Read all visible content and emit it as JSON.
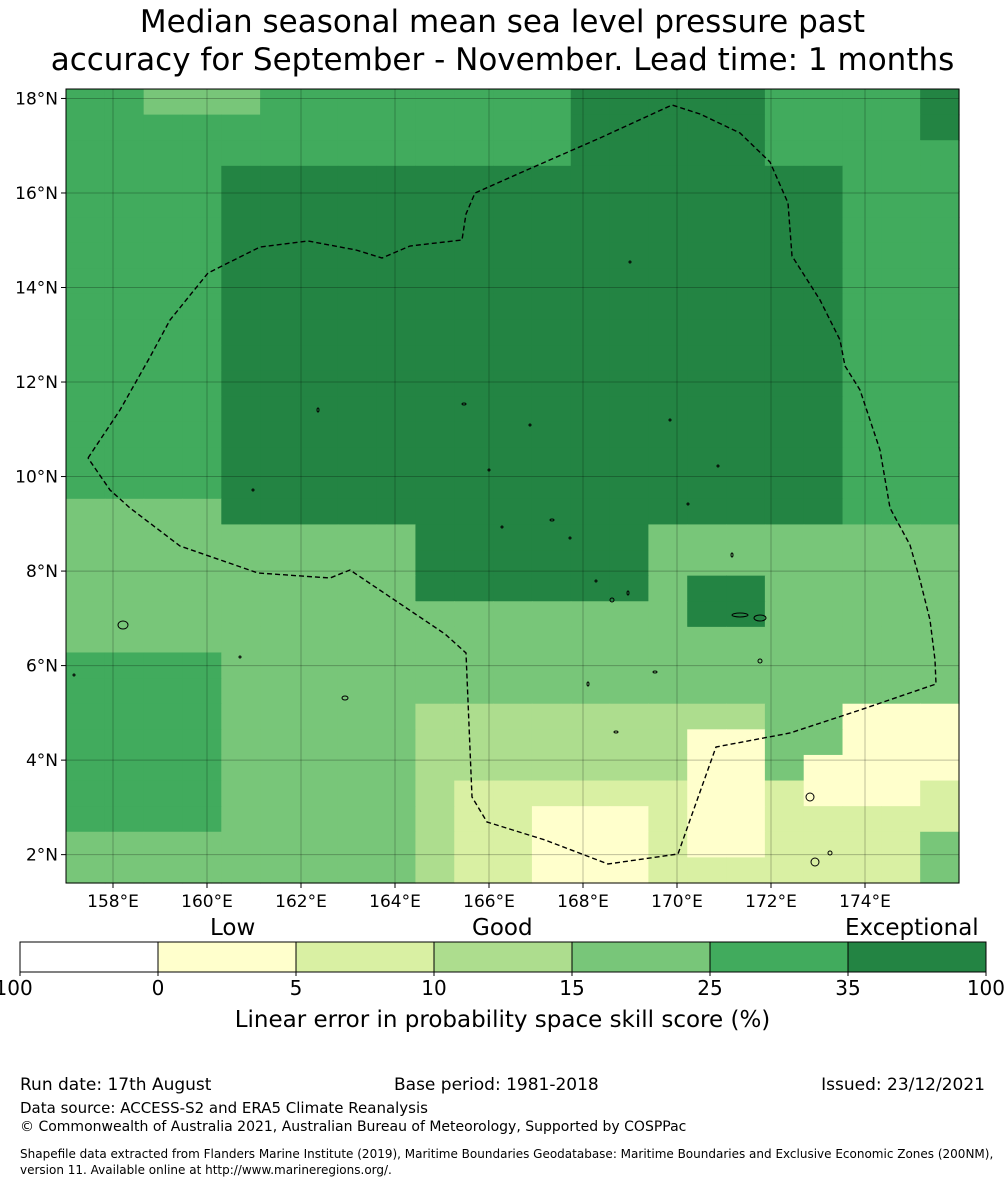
{
  "title": {
    "line1": "Median seasonal mean sea level pressure past",
    "line2": "accuracy for September - November. Lead time: 1 months"
  },
  "map": {
    "lon_range": [
      157.0,
      176.0
    ],
    "lat_range": [
      1.4,
      18.2
    ],
    "lon_ticks": [
      "158°E",
      "160°E",
      "162°E",
      "164°E",
      "166°E",
      "168°E",
      "170°E",
      "172°E",
      "174°E"
    ],
    "lat_ticks": [
      "2°N",
      "4°N",
      "6°N",
      "8°N",
      "10°N",
      "12°N",
      "14°N",
      "16°N",
      "18°N"
    ],
    "boundary_style": "dashed black EEZ outline",
    "grid_lines": true
  },
  "colorbar": {
    "qualitative_labels": [
      "Low",
      "Good",
      "Exceptional"
    ],
    "bins": [
      {
        "from": "-100",
        "to": "0",
        "color": "#ffffff"
      },
      {
        "from": "0",
        "to": "5",
        "color": "#ffffcc"
      },
      {
        "from": "5",
        "to": "10",
        "color": "#d9f0a3"
      },
      {
        "from": "10",
        "to": "15",
        "color": "#addd8e"
      },
      {
        "from": "15",
        "to": "25",
        "color": "#78c679"
      },
      {
        "from": "25",
        "to": "35",
        "color": "#41ab5d"
      },
      {
        "from": "35",
        "to": "100",
        "color": "#238443"
      }
    ],
    "tick_labels": [
      "-100",
      "0",
      "5",
      "10",
      "15",
      "25",
      "35",
      "100"
    ],
    "title": "Linear error in probability space skill score (%)"
  },
  "footer": {
    "run_date": "Run date: 17th August",
    "base_period": "Base period: 1981-2018",
    "issued": "Issued: 23/12/2021",
    "data_source": "Data source: ACCESS-S2 and ERA5 Climate Reanalysis",
    "copyright": "© Commonwealth of Australia 2021, Australian Bureau of Meteorology, Supported by COSPPac",
    "shapefile_note": "Shapefile data extracted from Flanders Marine Institute (2019), Maritime Boundaries Geodatabase: Maritime Boundaries and Exclusive Economic Zones (200NM), version 11. Available online at http://www.marineregions.org/."
  }
}
